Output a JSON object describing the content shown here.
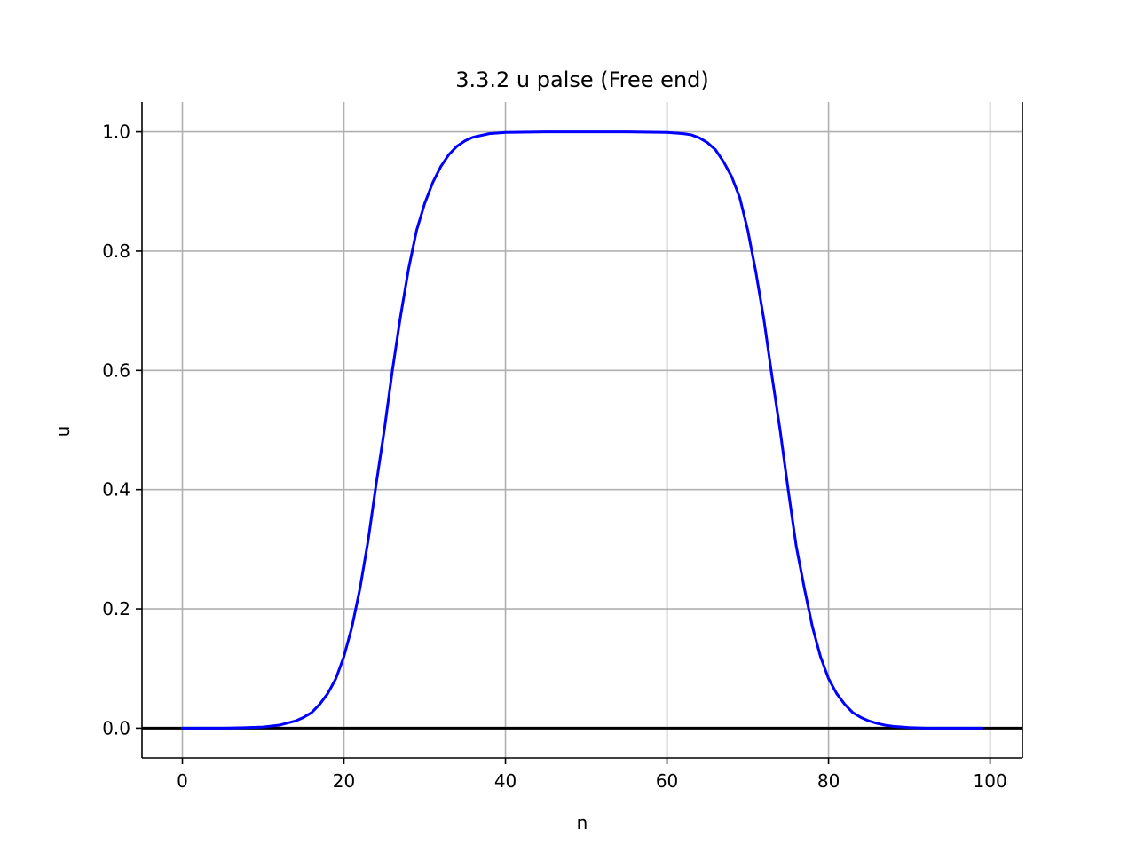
{
  "chart_data": {
    "type": "line",
    "title": "3.3.2 u palse (Free end)",
    "xlabel": "n",
    "ylabel": "u",
    "xlim": [
      -5,
      104
    ],
    "ylim": [
      -0.05,
      1.05
    ],
    "xticks": [
      0,
      20,
      40,
      60,
      80,
      100
    ],
    "yticks": [
      0.0,
      0.2,
      0.4,
      0.6,
      0.8,
      1.0
    ],
    "xtick_labels": [
      "0",
      "20",
      "40",
      "60",
      "80",
      "100"
    ],
    "ytick_labels": [
      "0.0",
      "0.2",
      "0.4",
      "0.6",
      "0.8",
      "1.0"
    ],
    "grid": true,
    "reference_line": {
      "y": 0.0,
      "color": "#000000"
    },
    "series": [
      {
        "color": "#0000ff",
        "x": [
          0,
          5,
          8,
          10,
          12,
          14,
          15,
          16,
          17,
          18,
          19,
          20,
          21,
          22,
          23,
          24,
          25,
          26,
          27,
          28,
          29,
          30,
          31,
          32,
          33,
          34,
          35,
          36,
          38,
          40,
          45,
          50,
          55,
          60,
          62,
          63,
          64,
          65,
          66,
          67,
          68,
          69,
          70,
          71,
          72,
          73,
          74,
          75,
          76,
          77,
          78,
          79,
          80,
          81,
          82,
          83,
          84,
          85,
          86,
          87,
          88,
          90,
          92,
          95,
          99
        ],
        "y": [
          0.0,
          0.0,
          0.001,
          0.002,
          0.005,
          0.012,
          0.018,
          0.026,
          0.04,
          0.058,
          0.083,
          0.12,
          0.17,
          0.235,
          0.315,
          0.41,
          0.5,
          0.6,
          0.69,
          0.77,
          0.835,
          0.88,
          0.915,
          0.942,
          0.962,
          0.976,
          0.985,
          0.991,
          0.997,
          0.999,
          1.0,
          1.0,
          1.0,
          0.999,
          0.997,
          0.995,
          0.99,
          0.982,
          0.97,
          0.95,
          0.925,
          0.89,
          0.835,
          0.765,
          0.685,
          0.59,
          0.5,
          0.4,
          0.305,
          0.235,
          0.17,
          0.12,
          0.083,
          0.058,
          0.04,
          0.026,
          0.018,
          0.012,
          0.008,
          0.005,
          0.003,
          0.001,
          0.0,
          0.0,
          0.0
        ]
      }
    ]
  }
}
